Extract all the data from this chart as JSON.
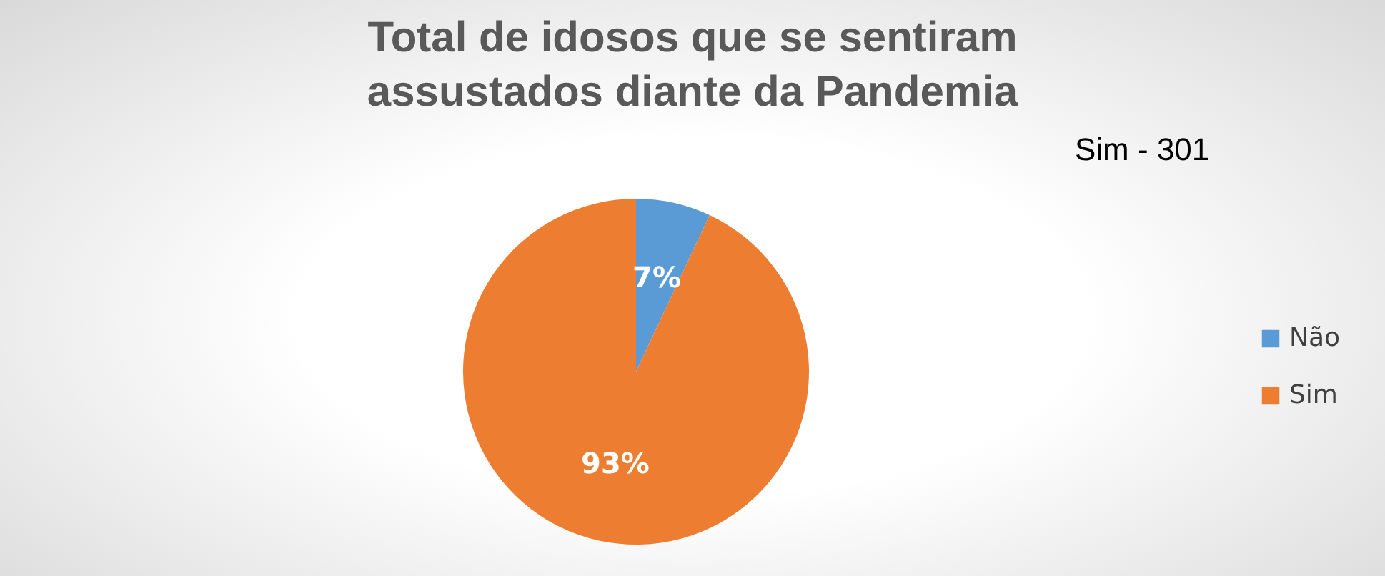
{
  "chart_data": {
    "type": "pie",
    "title": "Total de idosos que se sentiram assustados diante da Pandemia",
    "categories": [
      "Não",
      "Sim"
    ],
    "values": [
      7,
      93
    ],
    "colors": [
      "#5b9bd5",
      "#ed7d31"
    ],
    "value_labels": [
      "7%",
      "93%"
    ],
    "annotations": [
      "Sim - 301"
    ],
    "legend": "right"
  }
}
